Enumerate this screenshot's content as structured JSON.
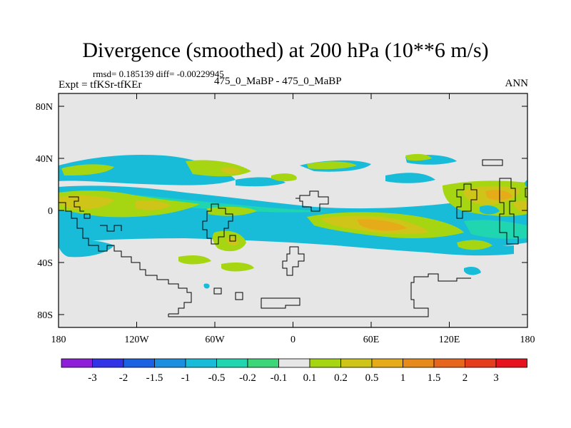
{
  "header": {
    "title": "Divergence (smoothed) at 200 hPa (10**6 m/s)",
    "stats": "rmsd= 0.185139 diff= -0.00229945",
    "expt": "Expt = tfKSr-tfKEr",
    "case": "475_0_MaBP - 475_0_MaBP",
    "season": "ANN"
  },
  "map": {
    "lat_ticks": [
      "80N",
      "40N",
      "0",
      "40S",
      "80S"
    ],
    "lon_ticks": [
      "180",
      "120W",
      "60W",
      "0",
      "60E",
      "120E",
      "180"
    ]
  },
  "colorbar": {
    "labels": [
      "-3",
      "-2",
      "-1.5",
      "-1",
      "-0.5",
      "-0.2",
      "-0.1",
      "0.1",
      "0.2",
      "0.5",
      "1",
      "1.5",
      "2",
      "3"
    ],
    "colors": [
      "#8e1ed8",
      "#3232e6",
      "#1b62e3",
      "#1a8fe0",
      "#19bcd8",
      "#20d6b0",
      "#3cd67a",
      "#e6e6e6",
      "#a6d611",
      "#cfc418",
      "#e6ab18",
      "#e68a1c",
      "#e6661e",
      "#e63c1e",
      "#e6131e"
    ]
  }
}
